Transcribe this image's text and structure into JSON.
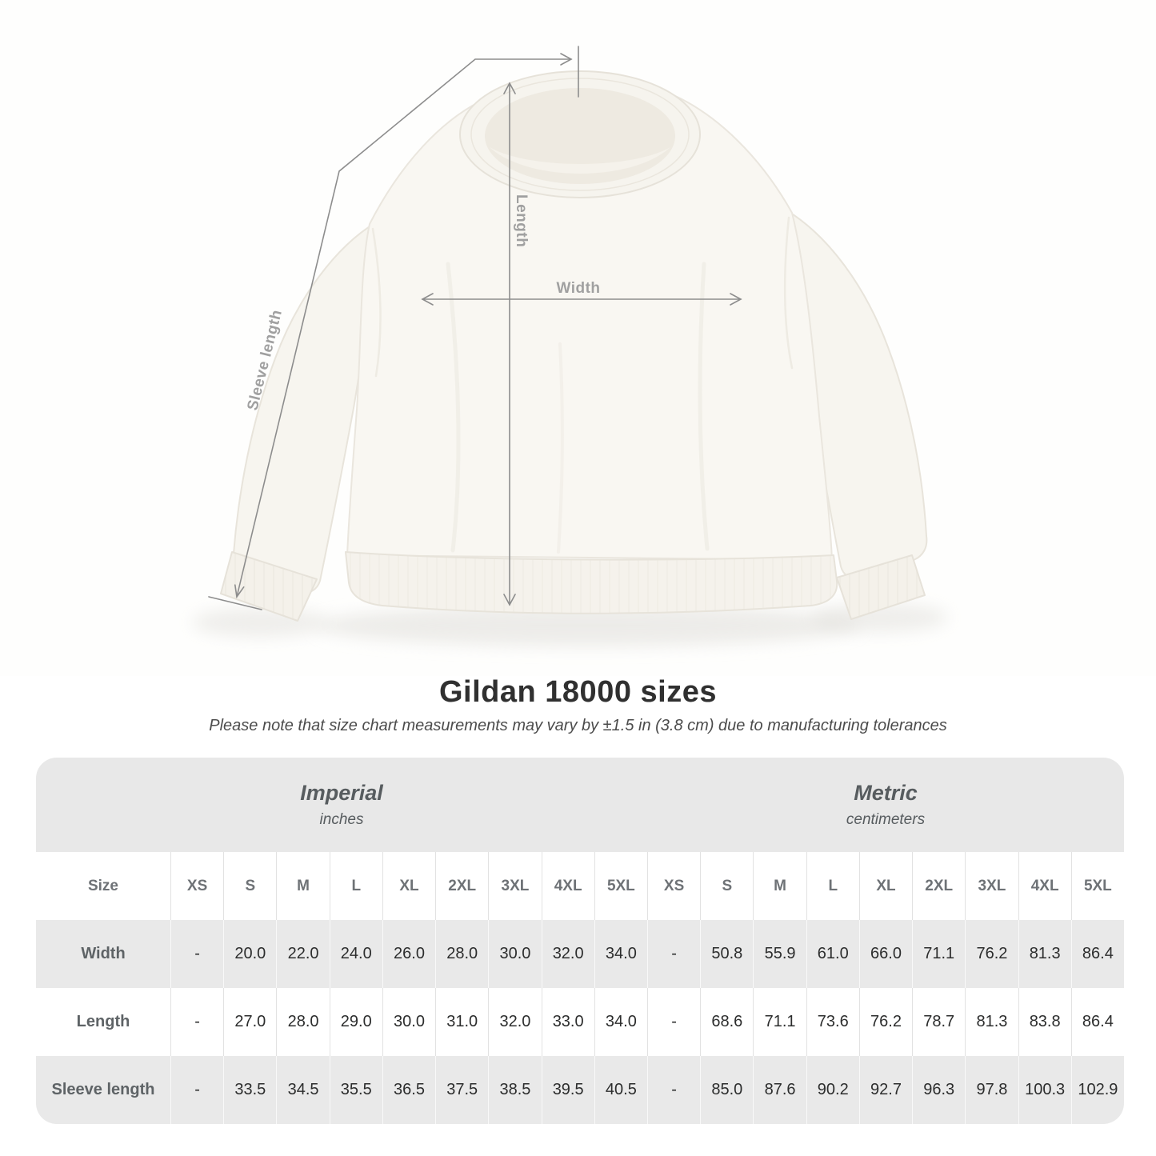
{
  "diagram": {
    "labels": {
      "length": "Length",
      "width": "Width",
      "sleeve": "Sleeve length"
    }
  },
  "title": "Gildan 18000 sizes",
  "subtitle": "Please note that size chart measurements may vary by ±1.5 in (3.8 cm) due to manufacturing tolerances",
  "table": {
    "groups": [
      {
        "label": "Imperial",
        "sublabel": "inches"
      },
      {
        "label": "Metric",
        "sublabel": "centimeters"
      }
    ],
    "size_header": "Size",
    "sizes": [
      "XS",
      "S",
      "M",
      "L",
      "XL",
      "2XL",
      "3XL",
      "4XL",
      "5XL"
    ],
    "rows": [
      {
        "label": "Width",
        "imperial": [
          "-",
          "20.0",
          "22.0",
          "24.0",
          "26.0",
          "28.0",
          "30.0",
          "32.0",
          "34.0"
        ],
        "metric": [
          "-",
          "50.8",
          "55.9",
          "61.0",
          "66.0",
          "71.1",
          "76.2",
          "81.3",
          "86.4"
        ]
      },
      {
        "label": "Length",
        "imperial": [
          "-",
          "27.0",
          "28.0",
          "29.0",
          "30.0",
          "31.0",
          "32.0",
          "33.0",
          "34.0"
        ],
        "metric": [
          "-",
          "68.6",
          "71.1",
          "73.6",
          "76.2",
          "78.7",
          "81.3",
          "83.8",
          "86.4"
        ]
      },
      {
        "label": "Sleeve length",
        "imperial": [
          "-",
          "33.5",
          "34.5",
          "35.5",
          "36.5",
          "37.5",
          "38.5",
          "39.5",
          "40.5"
        ],
        "metric": [
          "-",
          "85.0",
          "87.6",
          "90.2",
          "92.7",
          "96.3",
          "97.8",
          "100.3",
          "102.9"
        ]
      }
    ]
  },
  "chart_data": {
    "type": "table",
    "title": "Gildan 18000 sizes",
    "units": [
      "inches",
      "centimeters"
    ],
    "sizes": [
      "XS",
      "S",
      "M",
      "L",
      "XL",
      "2XL",
      "3XL",
      "4XL",
      "5XL"
    ],
    "width_in": [
      null,
      20.0,
      22.0,
      24.0,
      26.0,
      28.0,
      30.0,
      32.0,
      34.0
    ],
    "length_in": [
      null,
      27.0,
      28.0,
      29.0,
      30.0,
      31.0,
      32.0,
      33.0,
      34.0
    ],
    "sleeve_in": [
      null,
      33.5,
      34.5,
      35.5,
      36.5,
      37.5,
      38.5,
      39.5,
      40.5
    ],
    "width_cm": [
      null,
      50.8,
      55.9,
      61.0,
      66.0,
      71.1,
      76.2,
      81.3,
      86.4
    ],
    "length_cm": [
      null,
      68.6,
      71.1,
      73.6,
      76.2,
      78.7,
      81.3,
      83.8,
      86.4
    ],
    "sleeve_cm": [
      null,
      85.0,
      87.6,
      90.2,
      92.7,
      96.3,
      97.8,
      100.3,
      102.9
    ]
  },
  "colors": {
    "band_bg": "#e8e8e8",
    "stripe_bg": "#e9e9e9",
    "value_text": "#2c2d2d",
    "label_text": "#5e6366",
    "measure_line": "#8d8d8d",
    "measure_label": "#a0a0a0",
    "garment": "#f9f7f2"
  }
}
